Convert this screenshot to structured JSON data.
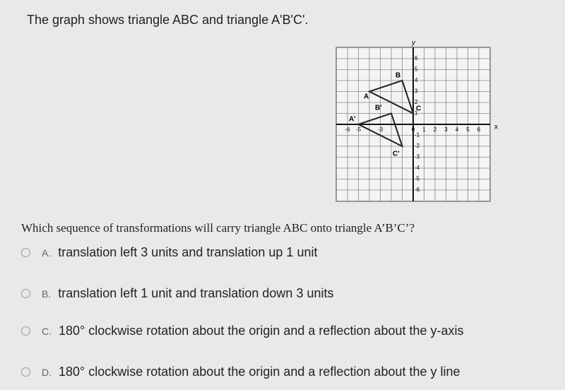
{
  "prompt": "The graph shows triangle ABC and triangle A'B'C'.",
  "graph": {
    "x_axis": "x",
    "y_axis": "y",
    "xticks": [
      -6,
      -5,
      -3,
      0,
      1,
      2,
      3,
      4,
      5,
      6
    ],
    "yticks": [
      6,
      5,
      4,
      3,
      2,
      1,
      -1,
      -2,
      -3,
      -4,
      -5,
      -6
    ],
    "labels": {
      "A": "A",
      "B": "B",
      "C": "C",
      "A_prime": "A'",
      "B_prime": "B'",
      "C_prime": "C'"
    }
  },
  "question": "Which sequence of transformations will carry triangle ABC onto triangle A’B’C’?",
  "options": [
    {
      "letter": "A.",
      "text": "translation left 3 units and translation up 1 unit"
    },
    {
      "letter": "B.",
      "text": "translation left 1 unit and translation down 3 units"
    },
    {
      "letter": "C.",
      "text": "180° clockwise rotation about the origin and a reflection about the y-axis"
    },
    {
      "letter": "D.",
      "text": "180° clockwise rotation about the origin and a reflection about the y line"
    }
  ]
}
